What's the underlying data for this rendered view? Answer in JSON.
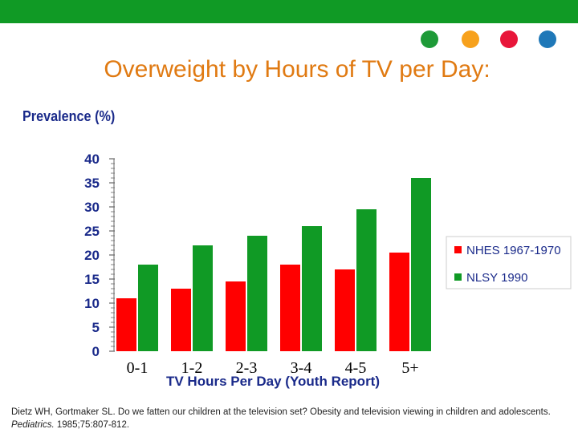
{
  "slide": {
    "title": "Overweight by Hours of TV per Day:",
    "dot_colors": [
      "#1e9a38",
      "#f7a11c",
      "#e8163a",
      "#1f78b8"
    ],
    "citation_line1": "Dietz WH, Gortmaker SL. Do we fatten our children at the television set? Obesity and television viewing in children and adolescents.",
    "citation_journal": "Pediatrics.",
    "citation_rest": " 1985;75:807-812."
  },
  "chart_data": {
    "type": "bar",
    "title": "Overweight by Hours of TV per Day:",
    "ylabel": "Prevalence (%)",
    "xlabel": "TV Hours Per Day (Youth Report)",
    "categories": [
      "0-1",
      "1-2",
      "2-3",
      "3-4",
      "4-5",
      "5+"
    ],
    "ylim": [
      0,
      40
    ],
    "yticks": [
      "0",
      "5",
      "10",
      "15",
      "20",
      "25",
      "30",
      "35",
      "40"
    ],
    "series": [
      {
        "name": "NHES 1967-1970",
        "color": "#ff0000",
        "values": [
          11,
          13,
          14.5,
          18,
          17,
          20.5
        ]
      },
      {
        "name": "NLSY 1990",
        "color": "#109a25",
        "values": [
          18,
          22,
          24,
          26,
          29.5,
          36
        ]
      }
    ],
    "legend_position": "right"
  }
}
